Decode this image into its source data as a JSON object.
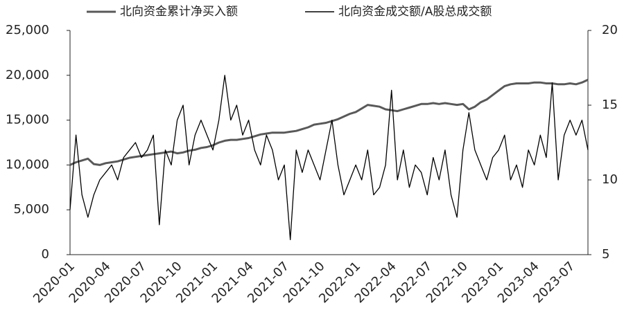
{
  "chart_data": {
    "type": "line",
    "categories": [
      "2020-01",
      null,
      null,
      null,
      null,
      null,
      "2020-04",
      null,
      null,
      null,
      null,
      null,
      "2020-07",
      null,
      null,
      null,
      null,
      null,
      "2020-10",
      null,
      null,
      null,
      null,
      null,
      "2021-01",
      null,
      null,
      null,
      null,
      null,
      "2021-04",
      null,
      null,
      null,
      null,
      null,
      "2021-07",
      null,
      null,
      null,
      null,
      null,
      "2021-10",
      null,
      null,
      null,
      null,
      null,
      "2022-01",
      null,
      null,
      null,
      null,
      null,
      "2022-04",
      null,
      null,
      null,
      null,
      null,
      "2022-07",
      null,
      null,
      null,
      null,
      null,
      "2022-10",
      null,
      null,
      null,
      null,
      null,
      "2023-01",
      null,
      null,
      null,
      null,
      null,
      "2023-04",
      null,
      null,
      null,
      null,
      null,
      "2023-07",
      null,
      null,
      null
    ],
    "series": [
      {
        "name": "北向资金累计净买入额",
        "color": "#595959",
        "values": [
          10000,
          10300,
          10500,
          10700,
          10100,
          10000,
          10200,
          10300,
          10400,
          10600,
          10800,
          10900,
          11000,
          11100,
          11200,
          11300,
          11400,
          11500,
          11300,
          11400,
          11600,
          11700,
          11900,
          12000,
          12200,
          12500,
          12700,
          12800,
          12800,
          12900,
          13000,
          13200,
          13400,
          13500,
          13600,
          13600,
          13600,
          13700,
          13800,
          14000,
          14200,
          14500,
          14600,
          14700,
          14900,
          15100,
          15400,
          15700,
          15900,
          16300,
          16700,
          16600,
          16500,
          16200,
          16100,
          16000,
          16200,
          16400,
          16600,
          16800,
          16800,
          16900,
          16800,
          16900,
          16800,
          16700,
          16800,
          16200,
          16500,
          17000,
          17300,
          17800,
          18300,
          18800,
          19000,
          19100,
          19100,
          19100,
          19200,
          19200,
          19100,
          19100,
          19000,
          19000,
          19100,
          19000,
          19200,
          19500
        ]
      },
      {
        "name": "北向资金成交额/A股总成交额",
        "color": "#000000",
        "axis": "y2",
        "values": [
          8,
          13,
          9,
          7.5,
          9,
          10,
          10.5,
          11,
          10,
          11.5,
          12,
          12.5,
          11.5,
          12,
          13,
          7,
          12,
          11,
          14,
          15,
          11,
          13,
          14,
          13,
          12,
          14,
          17,
          14,
          15,
          13,
          14,
          12,
          11,
          13,
          12,
          10,
          11,
          6,
          12,
          10.5,
          12,
          11,
          10,
          12,
          14,
          11,
          9,
          10,
          11,
          10,
          12,
          9,
          9.5,
          11,
          16,
          10,
          12,
          9.5,
          11,
          10.5,
          9,
          11.5,
          10,
          12,
          9,
          7.5,
          12,
          14.5,
          12,
          11,
          10,
          11.5,
          12,
          13,
          10,
          11,
          9.5,
          12,
          11,
          13,
          11.5,
          16.5,
          10,
          13,
          14,
          13,
          14,
          12
        ]
      }
    ],
    "ylim": [
      0,
      25000
    ],
    "yticks": [
      0,
      {
        "value": 5000,
        "label": "5,000"
      },
      {
        "value": 10000,
        "label": "10,000"
      },
      {
        "value": 15000,
        "label": "15,000"
      },
      {
        "value": 20000,
        "label": "20,000"
      },
      {
        "value": 25000,
        "label": "25,000"
      }
    ],
    "y2lim": [
      5,
      20
    ],
    "y2ticks": [
      5,
      10,
      15,
      20
    ],
    "grid": false
  }
}
